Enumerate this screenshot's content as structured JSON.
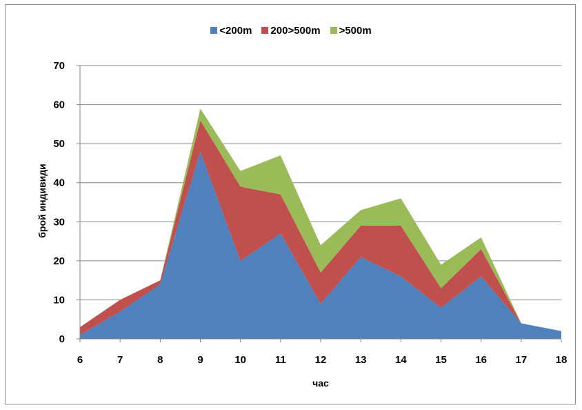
{
  "chart_data": {
    "type": "area",
    "stacked": true,
    "title": "",
    "xlabel": "час",
    "ylabel": "брой индивиди",
    "x": [
      6,
      7,
      8,
      9,
      10,
      11,
      12,
      13,
      14,
      15,
      16,
      17,
      18
    ],
    "ylim": [
      0,
      70
    ],
    "yticks": [
      0,
      10,
      20,
      30,
      40,
      50,
      60,
      70
    ],
    "grid": true,
    "legend_position": "top",
    "series": [
      {
        "name": "<200m",
        "color": "#4f81bd",
        "values": [
          1,
          7,
          14,
          48,
          20,
          27,
          9,
          21,
          16,
          8,
          16,
          4,
          2
        ]
      },
      {
        "name": "200>500m",
        "color": "#c0504d",
        "values": [
          2,
          3,
          1,
          8,
          19,
          10,
          8,
          8,
          13,
          5,
          7,
          0,
          0
        ]
      },
      {
        "name": ">500m",
        "color": "#9bbb59",
        "values": [
          0,
          0,
          0,
          3,
          4,
          10,
          7,
          4,
          7,
          6,
          3,
          0,
          0
        ]
      }
    ]
  }
}
